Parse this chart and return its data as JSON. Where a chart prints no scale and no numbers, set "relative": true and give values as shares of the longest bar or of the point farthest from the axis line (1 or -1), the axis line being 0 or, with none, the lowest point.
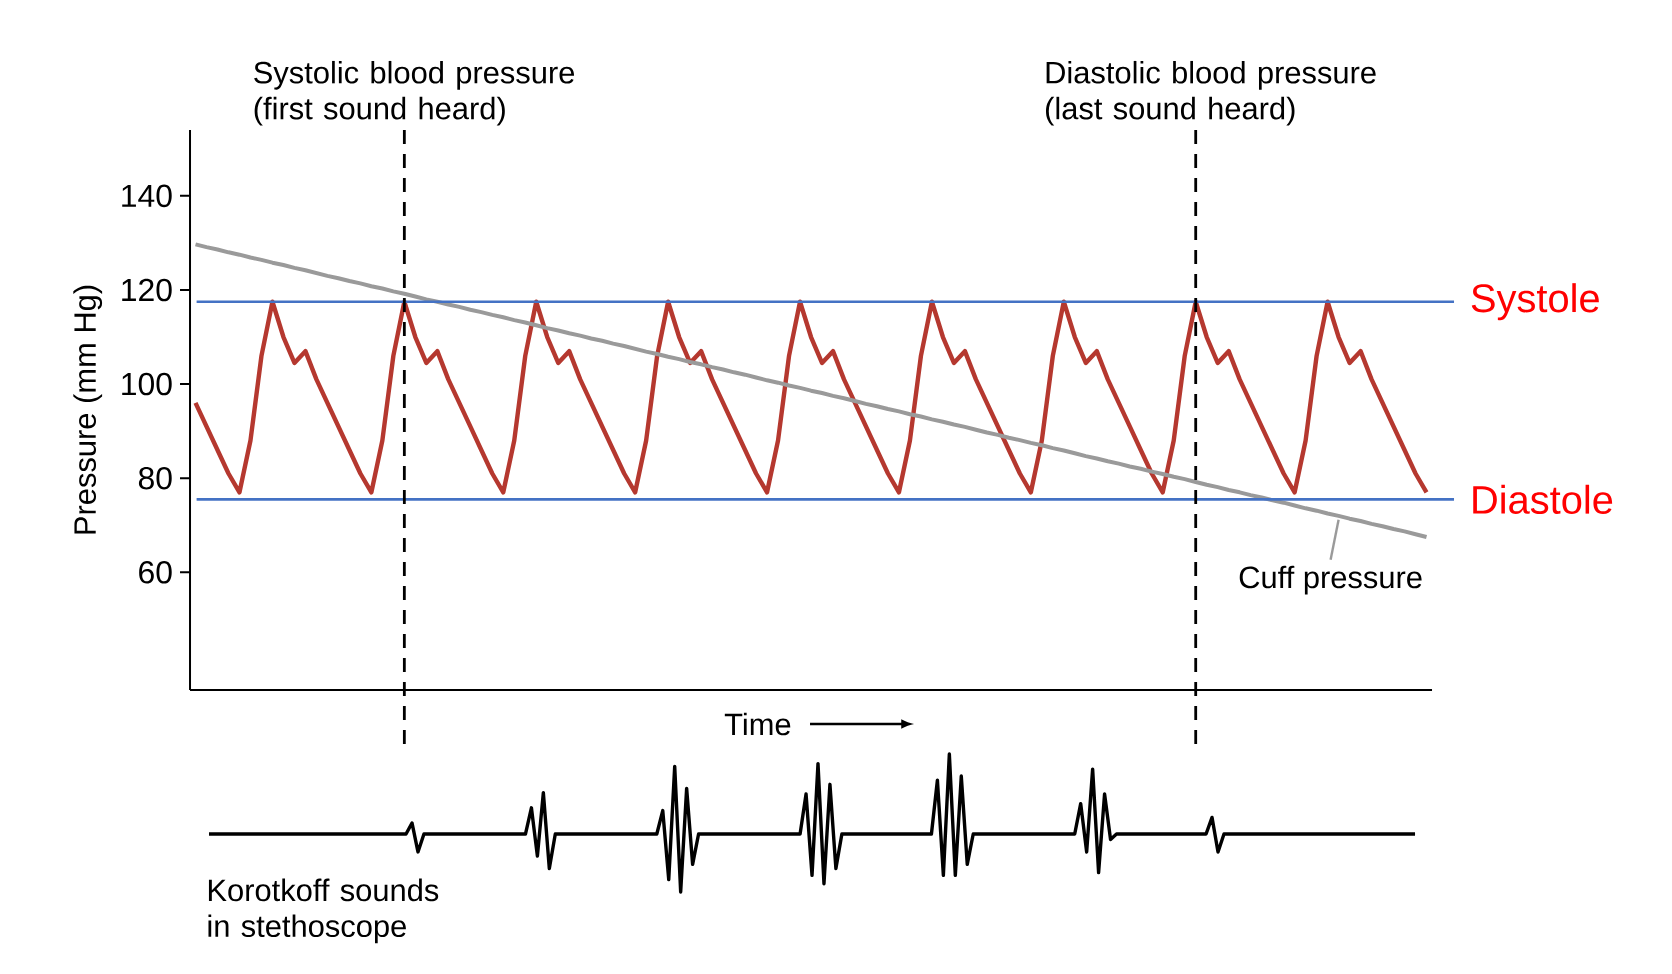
{
  "chart_data": [
    {
      "type": "line",
      "xlabel": "Time",
      "ylabel": "Pressure (mm Hg)",
      "categories": [
        null,
        null,
        null,
        null,
        null,
        null,
        null,
        null,
        null,
        null,
        null,
        null,
        null,
        null,
        null,
        null,
        null,
        null,
        null,
        null,
        null,
        null,
        null,
        null,
        null,
        null,
        null,
        null,
        null,
        null,
        null,
        null,
        null,
        null,
        null,
        null,
        null,
        null,
        null,
        null,
        null,
        null,
        null,
        null,
        null,
        null,
        null,
        null,
        null,
        null,
        null,
        null,
        null,
        null,
        null,
        null,
        null,
        null,
        null,
        null,
        null,
        null,
        null,
        null,
        null,
        null,
        null,
        null,
        null,
        null,
        null,
        null,
        null,
        null,
        null,
        null,
        null,
        null,
        null,
        null,
        null,
        null,
        null,
        null,
        null,
        null,
        null,
        null,
        null,
        null,
        null,
        null,
        null,
        null,
        null,
        null,
        null,
        null,
        null,
        null,
        null,
        null,
        null,
        null,
        null,
        null,
        null,
        null,
        null,
        null,
        null,
        null,
        null
      ],
      "ylim": [
        35,
        154
      ],
      "yticks": [
        60,
        80,
        100,
        120,
        140
      ],
      "tick_labels": "y",
      "series": [
        {
          "color": "#b5382f",
          "values": [
            96,
            91,
            86,
            81,
            77,
            88,
            106,
            117.5,
            110,
            104.5,
            107,
            101,
            96,
            91,
            86,
            81,
            77,
            88,
            106,
            117.5,
            110,
            104.5,
            107,
            101,
            96,
            91,
            86,
            81,
            77,
            88,
            106,
            117.5,
            110,
            104.5,
            107,
            101,
            96,
            91,
            86,
            81,
            77,
            88,
            106,
            117.5,
            110,
            104.5,
            107,
            101,
            96,
            91,
            86,
            81,
            77,
            88,
            106,
            117.5,
            110,
            104.5,
            107,
            101,
            96,
            91,
            86,
            81,
            77,
            88,
            106,
            117.5,
            110,
            104.5,
            107,
            101,
            96,
            91,
            86,
            81,
            77,
            88,
            106,
            117.5,
            110,
            104.5,
            107,
            101,
            96,
            91,
            86,
            81,
            77,
            88,
            106,
            117.5,
            110,
            104.5,
            107,
            101,
            96,
            91,
            86,
            81,
            77,
            88,
            106,
            117.5,
            110,
            104.5,
            107,
            101,
            96,
            91,
            86,
            81,
            77
          ]
        },
        {
          "name": "Cuff pressure",
          "color": "#9a9a9a",
          "values": [
            129.7,
            129.1,
            128.6,
            128.0,
            127.5,
            126.9,
            126.4,
            125.8,
            125.3,
            124.7,
            124.2,
            123.6,
            123.0,
            122.5,
            121.9,
            121.4,
            120.8,
            120.3,
            119.7,
            119.2,
            118.6,
            118.0,
            117.5,
            116.9,
            116.4,
            115.8,
            115.3,
            114.7,
            114.2,
            113.6,
            113.1,
            112.5,
            111.9,
            111.4,
            110.8,
            110.3,
            109.7,
            109.2,
            108.6,
            108.1,
            107.5,
            106.9,
            106.4,
            105.8,
            105.3,
            104.7,
            104.2,
            103.6,
            103.1,
            102.5,
            102.0,
            101.4,
            100.8,
            100.3,
            99.7,
            99.2,
            98.6,
            98.1,
            97.5,
            97.0,
            96.4,
            95.8,
            95.3,
            94.7,
            94.2,
            93.6,
            93.1,
            92.5,
            92.0,
            91.4,
            90.9,
            90.3,
            89.7,
            89.2,
            88.6,
            88.1,
            87.5,
            87.0,
            86.4,
            85.9,
            85.3,
            84.7,
            84.2,
            83.6,
            83.1,
            82.5,
            82.0,
            81.4,
            80.9,
            80.3,
            79.8,
            79.2,
            78.6,
            78.1,
            77.5,
            77.0,
            76.4,
            75.9,
            75.3,
            74.8,
            74.2,
            73.6,
            73.1,
            72.5,
            72.0,
            71.4,
            70.9,
            70.3,
            69.8,
            69.2,
            68.7,
            68.1,
            67.5
          ]
        }
      ],
      "ref_lines": [
        {
          "axis": "y",
          "value": 117.5,
          "label": "Systole",
          "color": "#4472c4"
        },
        {
          "axis": "y",
          "value": 75.5,
          "label": "Diastole",
          "color": "#4472c4"
        }
      ],
      "annotations": [
        "Systolic blood pressure (first sound heard)",
        "Diastolic blood pressure (last sound heard)"
      ]
    },
    {
      "type": "line",
      "relative": true,
      "tick_labels": false,
      "annotations": [
        "Korotkoff sounds in stethoscope"
      ],
      "categories": [
        null,
        null,
        null,
        null,
        null,
        null,
        null,
        null,
        null,
        null,
        null,
        null,
        null,
        null,
        null,
        null,
        null,
        null,
        null,
        null,
        null,
        null,
        null,
        null,
        null,
        null,
        null,
        null,
        null,
        null,
        null,
        null,
        null,
        null,
        null,
        null,
        null,
        null,
        null,
        null,
        null,
        null,
        null,
        null,
        null,
        null,
        null,
        null,
        null,
        null,
        null,
        null,
        null,
        null,
        null,
        null,
        null,
        null,
        null,
        null,
        null,
        null,
        null,
        null,
        null,
        null,
        null,
        null,
        null,
        null,
        null,
        null,
        null,
        null,
        null,
        null,
        null,
        null,
        null,
        null,
        null,
        null,
        null,
        null,
        null,
        null,
        null,
        null,
        null,
        null,
        null,
        null,
        null,
        null,
        null,
        null,
        null,
        null,
        null,
        null,
        null,
        null,
        null,
        null,
        null,
        null,
        null,
        null,
        null,
        null,
        null,
        null,
        null,
        null,
        null,
        null,
        null,
        null,
        null,
        null,
        null,
        null,
        null,
        null,
        null,
        null,
        null,
        null,
        null,
        null,
        null,
        null,
        null,
        null,
        null,
        null,
        null,
        null,
        null,
        null,
        null,
        null,
        null,
        null,
        null,
        null,
        null,
        null,
        null,
        null,
        null,
        null,
        null,
        null,
        null,
        null,
        null,
        null,
        null,
        null,
        null,
        null,
        null,
        null,
        null,
        null,
        null,
        null,
        null,
        null,
        null,
        null,
        null,
        null,
        null,
        null,
        null,
        null,
        null,
        null,
        null,
        null,
        null,
        null,
        null,
        null,
        null,
        null,
        null,
        null,
        null,
        null,
        null,
        null,
        null,
        null,
        null,
        null,
        null,
        null,
        null,
        null,
        null
      ],
      "series": [
        {
          "color": "#000000",
          "values": [
            0.42,
            0.42,
            0.42,
            0.42,
            0.42,
            0.42,
            0.42,
            0.42,
            0.42,
            0.42,
            0.42,
            0.42,
            0.42,
            0.42,
            0.42,
            0.42,
            0.42,
            0.42,
            0.42,
            0.42,
            0.42,
            0.42,
            0.42,
            0.42,
            0.42,
            0.42,
            0.42,
            0.42,
            0.42,
            0.42,
            0.42,
            0.42,
            0.42,
            0.42,
            0.5,
            0.29,
            0.42,
            0.42,
            0.42,
            0.42,
            0.42,
            0.42,
            0.42,
            0.42,
            0.42,
            0.42,
            0.42,
            0.42,
            0.42,
            0.42,
            0.42,
            0.42,
            0.42,
            0.42,
            0.61,
            0.26,
            0.72,
            0.17,
            0.42,
            0.42,
            0.42,
            0.42,
            0.42,
            0.42,
            0.42,
            0.42,
            0.42,
            0.42,
            0.42,
            0.42,
            0.42,
            0.42,
            0.42,
            0.42,
            0.42,
            0.42,
            0.59,
            0.09,
            0.91,
            0,
            0.75,
            0.2,
            0.42,
            0.42,
            0.42,
            0.42,
            0.42,
            0.42,
            0.42,
            0.42,
            0.42,
            0.42,
            0.42,
            0.42,
            0.42,
            0.42,
            0.42,
            0.42,
            0.42,
            0.42,
            0.71,
            0.12,
            0.93,
            0.06,
            0.78,
            0.17,
            0.42,
            0.42,
            0.42,
            0.42,
            0.42,
            0.42,
            0.42,
            0.42,
            0.42,
            0.42,
            0.42,
            0.42,
            0.42,
            0.42,
            0.42,
            0.42,
            0.81,
            0.12,
            1,
            0.12,
            0.84,
            0.2,
            0.42,
            0.42,
            0.42,
            0.42,
            0.42,
            0.42,
            0.42,
            0.42,
            0.42,
            0.42,
            0.42,
            0.42,
            0.42,
            0.42,
            0.42,
            0.42,
            0.42,
            0.42,
            0.64,
            0.29,
            0.89,
            0.14,
            0.71,
            0.38,
            0.42,
            0.42,
            0.42,
            0.42,
            0.42,
            0.42,
            0.42,
            0.42,
            0.42,
            0.42,
            0.42,
            0.42,
            0.42,
            0.42,
            0.42,
            0.42,
            0.54,
            0.29,
            0.42,
            0.42,
            0.42,
            0.42,
            0.42,
            0.42,
            0.42,
            0.42,
            0.42,
            0.42,
            0.42,
            0.42,
            0.42,
            0.42,
            0.42,
            0.42,
            0.42,
            0.42,
            0.42,
            0.42,
            0.42,
            0.42,
            0.42,
            0.42,
            0.42,
            0.42,
            0.42,
            0.42,
            0.42,
            0.42,
            0.42,
            0.42,
            0.42
          ]
        }
      ]
    }
  ]
}
